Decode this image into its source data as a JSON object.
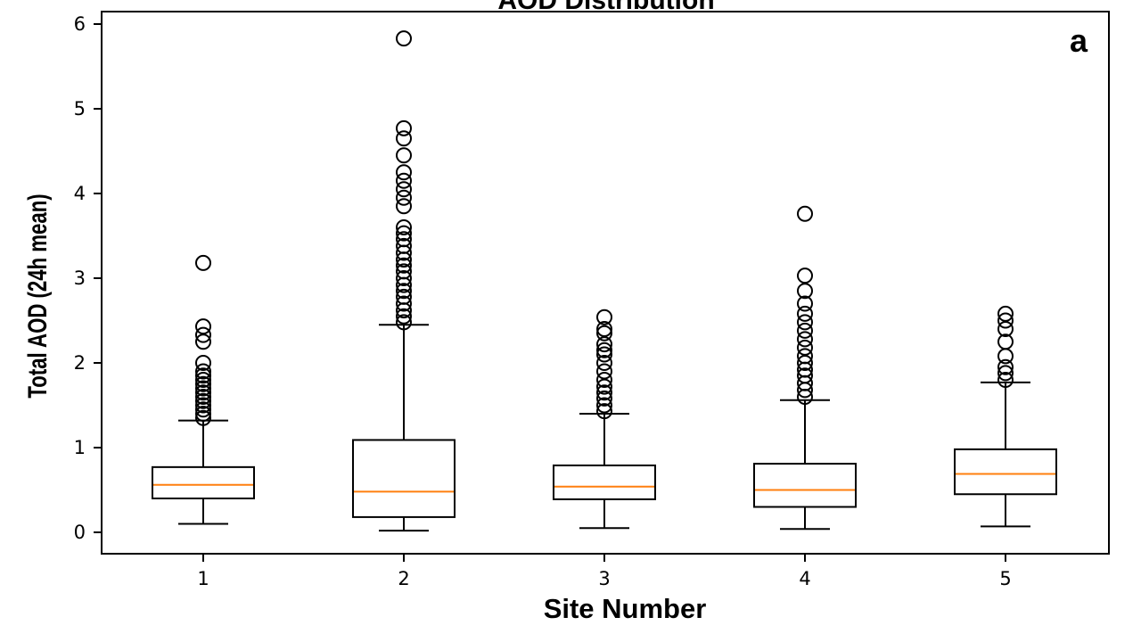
{
  "chart_data": {
    "type": "box",
    "title": "AOD Distribution",
    "panel_label": "a",
    "xlabel": "Site Number",
    "ylabel": "Total AOD (24h mean)",
    "ylim": [
      -0.25,
      6.15
    ],
    "yticks": [
      0,
      1,
      2,
      3,
      4,
      5,
      6
    ],
    "grid": false,
    "median_color": "#ff7f0e",
    "box_color": "#000000",
    "boxes": [
      {
        "label": "1",
        "whisker_low": 0.1,
        "q1": 0.4,
        "median": 0.56,
        "q3": 0.77,
        "whisker_high": 1.32,
        "outliers": [
          1.35,
          1.4,
          1.45,
          1.5,
          1.55,
          1.6,
          1.65,
          1.7,
          1.75,
          1.8,
          1.85,
          1.9,
          2.0,
          2.25,
          2.33,
          2.43,
          3.18
        ]
      },
      {
        "label": "2",
        "whisker_low": 0.02,
        "q1": 0.18,
        "median": 0.48,
        "q3": 1.09,
        "whisker_high": 2.45,
        "outliers": [
          2.48,
          2.55,
          2.62,
          2.7,
          2.78,
          2.85,
          2.92,
          3.0,
          3.08,
          3.15,
          3.22,
          3.3,
          3.38,
          3.46,
          3.53,
          3.6,
          3.85,
          3.95,
          4.05,
          4.15,
          4.25,
          4.45,
          4.65,
          4.77,
          5.83
        ]
      },
      {
        "label": "3",
        "whisker_low": 0.05,
        "q1": 0.39,
        "median": 0.54,
        "q3": 0.79,
        "whisker_high": 1.4,
        "outliers": [
          1.43,
          1.5,
          1.58,
          1.65,
          1.72,
          1.8,
          1.9,
          2.0,
          2.1,
          2.15,
          2.22,
          2.35,
          2.4,
          2.54
        ]
      },
      {
        "label": "4",
        "whisker_low": 0.04,
        "q1": 0.3,
        "median": 0.5,
        "q3": 0.81,
        "whisker_high": 1.56,
        "outliers": [
          1.6,
          1.68,
          1.76,
          1.85,
          1.92,
          2.0,
          2.08,
          2.18,
          2.28,
          2.38,
          2.48,
          2.58,
          2.7,
          2.85,
          3.03,
          3.76
        ]
      },
      {
        "label": "5",
        "whisker_low": 0.07,
        "q1": 0.45,
        "median": 0.69,
        "q3": 0.98,
        "whisker_high": 1.77,
        "outliers": [
          1.8,
          1.88,
          1.95,
          2.08,
          2.25,
          2.4,
          2.5,
          2.58
        ]
      }
    ]
  }
}
